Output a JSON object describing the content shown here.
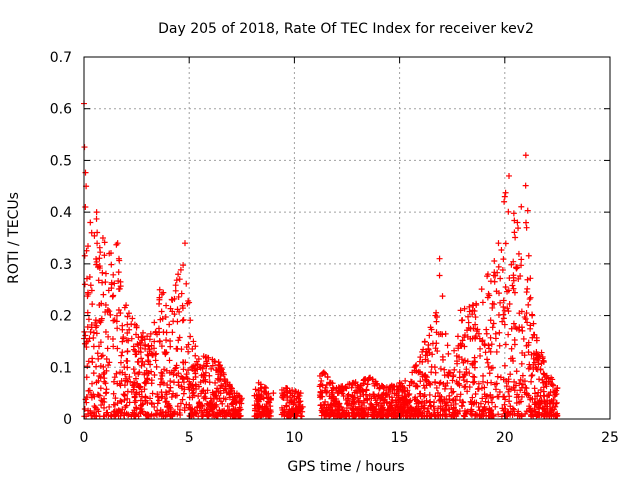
{
  "chart_data": {
    "type": "scatter",
    "title": "Day 205 of 2018, Rate Of TEC Index for receiver kev2",
    "xlabel": "GPS time / hours",
    "ylabel": "ROTI / TECUs",
    "xlim": [
      0,
      25
    ],
    "ylim": [
      0,
      0.7
    ],
    "x_ticks": [
      0,
      5,
      10,
      15,
      20,
      25
    ],
    "y_ticks": [
      0,
      0.1,
      0.2,
      0.3,
      0.4,
      0.5,
      0.6,
      0.7
    ],
    "x_tick_labels": [
      "0",
      "5",
      "10",
      "15",
      "20",
      "25"
    ],
    "y_tick_labels": [
      "0",
      "0.1",
      "0.2",
      "0.3",
      "0.4",
      "0.5",
      "0.6",
      "0.7"
    ],
    "grid": true,
    "marker": "+",
    "color": "#ff0000",
    "series": [
      {
        "name": "ROTI",
        "envelope": [
          {
            "x": 0.0,
            "y": 0.61
          },
          {
            "x": 0.1,
            "y": 0.45
          },
          {
            "x": 0.3,
            "y": 0.38
          },
          {
            "x": 0.6,
            "y": 0.4
          },
          {
            "x": 0.9,
            "y": 0.35
          },
          {
            "x": 1.2,
            "y": 0.32
          },
          {
            "x": 1.6,
            "y": 0.34
          },
          {
            "x": 2.0,
            "y": 0.22
          },
          {
            "x": 2.5,
            "y": 0.18
          },
          {
            "x": 3.0,
            "y": 0.16
          },
          {
            "x": 3.6,
            "y": 0.25
          },
          {
            "x": 4.2,
            "y": 0.23
          },
          {
            "x": 4.8,
            "y": 0.34
          },
          {
            "x": 5.2,
            "y": 0.15
          },
          {
            "x": 5.8,
            "y": 0.12
          },
          {
            "x": 6.4,
            "y": 0.11
          },
          {
            "x": 7.0,
            "y": 0.06
          },
          {
            "x": 7.5,
            "y": 0.04
          },
          {
            "x": 8.3,
            "y": 0.07
          },
          {
            "x": 9.0,
            "y": 0.05
          },
          {
            "x": 9.6,
            "y": 0.06
          },
          {
            "x": 10.3,
            "y": 0.05
          },
          {
            "x": 11.4,
            "y": 0.09
          },
          {
            "x": 12.0,
            "y": 0.06
          },
          {
            "x": 12.8,
            "y": 0.07
          },
          {
            "x": 13.6,
            "y": 0.08
          },
          {
            "x": 14.3,
            "y": 0.06
          },
          {
            "x": 15.0,
            "y": 0.07
          },
          {
            "x": 15.6,
            "y": 0.09
          },
          {
            "x": 16.2,
            "y": 0.15
          },
          {
            "x": 16.7,
            "y": 0.2
          },
          {
            "x": 16.9,
            "y": 0.31
          },
          {
            "x": 17.4,
            "y": 0.09
          },
          {
            "x": 17.9,
            "y": 0.21
          },
          {
            "x": 18.5,
            "y": 0.22
          },
          {
            "x": 19.2,
            "y": 0.28
          },
          {
            "x": 19.7,
            "y": 0.34
          },
          {
            "x": 20.0,
            "y": 0.43
          },
          {
            "x": 20.2,
            "y": 0.47
          },
          {
            "x": 20.6,
            "y": 0.38
          },
          {
            "x": 21.0,
            "y": 0.51
          },
          {
            "x": 21.3,
            "y": 0.2
          },
          {
            "x": 21.8,
            "y": 0.12
          },
          {
            "x": 22.2,
            "y": 0.08
          },
          {
            "x": 22.5,
            "y": 0.06
          }
        ],
        "gaps": [
          [
            7.5,
            8.1
          ],
          [
            8.9,
            9.4
          ],
          [
            10.4,
            11.2
          ]
        ]
      }
    ]
  }
}
